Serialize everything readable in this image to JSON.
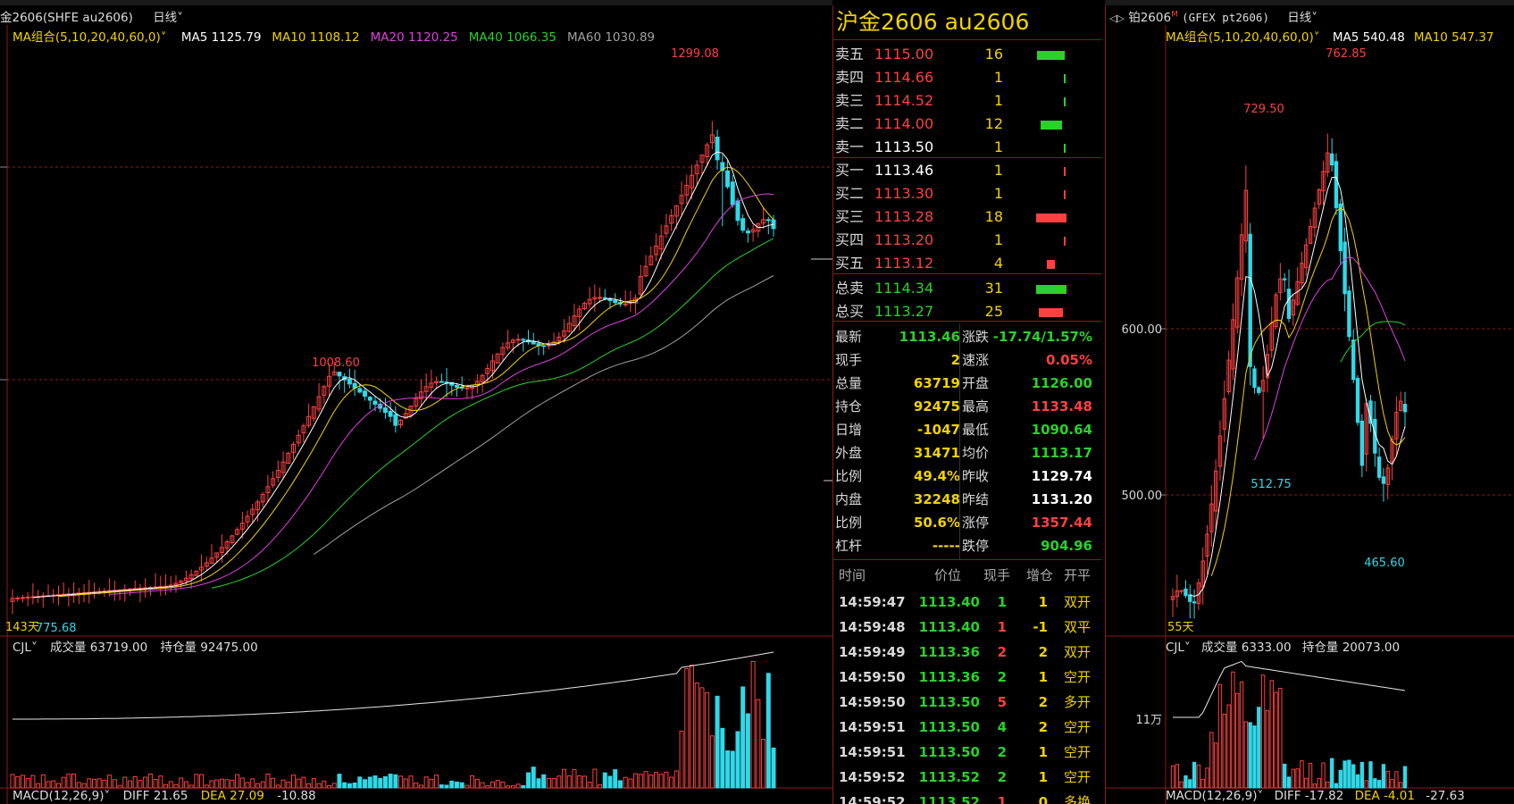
{
  "left_panel": {
    "title": "金2606(SHFE au2606)",
    "period": "日线",
    "ma_label": "MA组合(5,10,20,40,60,0)",
    "ma": [
      {
        "label": "MA5 1125.79",
        "color": "#ffffff"
      },
      {
        "label": "MA10 1108.12",
        "color": "#f2d200"
      },
      {
        "label": "MA20 1120.25",
        "color": "#e040e0"
      },
      {
        "label": "MA40 1066.35",
        "color": "#2ad12a"
      },
      {
        "label": "MA60 1030.89",
        "color": "#a0a0a0"
      }
    ],
    "high_label": "1299.08",
    "mid_high_label": "1008.60",
    "low_label": "775.68",
    "days_label": "143天",
    "vol_label": "CJL",
    "vol_value": "成交量 63719.00",
    "oi_value": "持仓量 92475.00",
    "macd_label": "MACD(12,26,9)",
    "diff": "DIFF 21.65",
    "dea": "DEA 27.09",
    "macd_val": "-10.88"
  },
  "quote": {
    "title": "沪金2606  au2606",
    "asks": [
      {
        "label": "卖五",
        "price": "1115.00",
        "vol": "16",
        "bar": 0.9,
        "pcolor": "#ff4040"
      },
      {
        "label": "卖四",
        "price": "1114.66",
        "vol": "1",
        "bar": 0.05,
        "pcolor": "#ff4040"
      },
      {
        "label": "卖三",
        "price": "1114.52",
        "vol": "1",
        "bar": 0.05,
        "pcolor": "#ff4040"
      },
      {
        "label": "卖二",
        "price": "1114.00",
        "vol": "12",
        "bar": 0.7,
        "pcolor": "#ff4040"
      },
      {
        "label": "卖一",
        "price": "1113.50",
        "vol": "1",
        "bar": 0.05,
        "pcolor": "#ffffff"
      }
    ],
    "bids": [
      {
        "label": "买一",
        "price": "1113.46",
        "vol": "1",
        "bar": 0.05,
        "pcolor": "#ffffff"
      },
      {
        "label": "买二",
        "price": "1113.30",
        "vol": "1",
        "bar": 0.05,
        "pcolor": "#ff4040"
      },
      {
        "label": "买三",
        "price": "1113.28",
        "vol": "18",
        "bar": 1.0,
        "pcolor": "#ff4040"
      },
      {
        "label": "买四",
        "price": "1113.20",
        "vol": "1",
        "bar": 0.05,
        "pcolor": "#ff4040"
      },
      {
        "label": "买五",
        "price": "1113.12",
        "vol": "4",
        "bar": 0.25,
        "pcolor": "#ff4040"
      }
    ],
    "totals": [
      {
        "label": "总卖",
        "price": "1114.34",
        "vol": "31",
        "bar": 1.0,
        "bcolor": "#2ad12a"
      },
      {
        "label": "总买",
        "price": "1113.27",
        "vol": "25",
        "bar": 0.8,
        "bcolor": "#ff4040"
      }
    ],
    "stats_left": [
      {
        "k": "最新",
        "v": "1113.46",
        "c": "#2ad12a"
      },
      {
        "k": "现手",
        "v": "2",
        "c": "#f2d200"
      },
      {
        "k": "总量",
        "v": "63719",
        "c": "#f2d200"
      },
      {
        "k": "持仓",
        "v": "92475",
        "c": "#f2d200"
      },
      {
        "k": "日增",
        "v": "-1047",
        "c": "#f2d200"
      },
      {
        "k": "外盘",
        "v": "31471",
        "c": "#f2d200"
      },
      {
        "k": "比例",
        "v": "49.4%",
        "c": "#f2d200"
      },
      {
        "k": "内盘",
        "v": "32248",
        "c": "#f2d200"
      },
      {
        "k": "比例",
        "v": "50.6%",
        "c": "#f2d200"
      },
      {
        "k": "杠杆",
        "v": "-----",
        "c": "#f2d200"
      }
    ],
    "stats_right": [
      {
        "k": "涨跌",
        "v": "-17.74/1.57%",
        "c": "#2ad12a"
      },
      {
        "k": "速涨",
        "v": "0.05%",
        "c": "#ff4040"
      },
      {
        "k": "开盘",
        "v": "1126.00",
        "c": "#2ad12a"
      },
      {
        "k": "最高",
        "v": "1133.48",
        "c": "#ff4040"
      },
      {
        "k": "最低",
        "v": "1090.64",
        "c": "#2ad12a"
      },
      {
        "k": "均价",
        "v": "1113.17",
        "c": "#2ad12a"
      },
      {
        "k": "昨收",
        "v": "1129.74",
        "c": "#ffffff"
      },
      {
        "k": "昨结",
        "v": "1131.20",
        "c": "#ffffff"
      },
      {
        "k": "涨停",
        "v": "1357.44",
        "c": "#ff4040"
      },
      {
        "k": "跌停",
        "v": "904.96",
        "c": "#2ad12a"
      }
    ],
    "tick_headers": [
      "时间",
      "价位",
      "现手",
      "增仓",
      "开平"
    ],
    "ticks": [
      {
        "t": "14:59:47",
        "p": "1113.40",
        "n": "1",
        "nc": "#2ad12a",
        "d": "1",
        "a": "双开"
      },
      {
        "t": "14:59:48",
        "p": "1113.40",
        "n": "1",
        "nc": "#ff4040",
        "d": "-1",
        "a": "双平"
      },
      {
        "t": "14:59:49",
        "p": "1113.36",
        "n": "2",
        "nc": "#ff4040",
        "d": "2",
        "a": "双开"
      },
      {
        "t": "14:59:50",
        "p": "1113.36",
        "n": "2",
        "nc": "#2ad12a",
        "d": "1",
        "a": "空开"
      },
      {
        "t": "14:59:50",
        "p": "1113.50",
        "n": "5",
        "nc": "#ff4040",
        "d": "2",
        "a": "多开"
      },
      {
        "t": "14:59:51",
        "p": "1113.50",
        "n": "4",
        "nc": "#2ad12a",
        "d": "2",
        "a": "空开"
      },
      {
        "t": "14:59:51",
        "p": "1113.50",
        "n": "2",
        "nc": "#2ad12a",
        "d": "1",
        "a": "空开"
      },
      {
        "t": "14:59:52",
        "p": "1113.52",
        "n": "2",
        "nc": "#2ad12a",
        "d": "1",
        "a": "空开"
      },
      {
        "t": "14:59:52",
        "p": "1113.52",
        "n": "1",
        "nc": "#ff4040",
        "d": "0",
        "a": "多换"
      }
    ]
  },
  "right_panel": {
    "icon": "◁▷",
    "title": "铂2606",
    "superscript": "M",
    "code": "(GFEX pt2606)",
    "period": "日线",
    "ma_label": "MA组合(5,10,20,40,60,0)",
    "ma": [
      {
        "label": "MA5 540.48",
        "color": "#ffffff"
      },
      {
        "label": "MA10 547.37",
        "color": "#f2d200"
      }
    ],
    "y_labels": [
      "600.00",
      "500.00"
    ],
    "high_label": "762.85",
    "peak1_label": "729.50",
    "low1_label": "512.75",
    "low2_label": "465.60",
    "days_label": "55天",
    "vol_label": "CJL",
    "vol_value": "成交量 6333.00",
    "oi_value": "持仓量 20073.00",
    "vol_axis": "11万",
    "macd_label": "MACD(12,26,9)",
    "diff": "DIFF -17.82",
    "dea": "DEA -4.01",
    "macd_val": "-27.63"
  },
  "colors": {
    "up": "#ff4040",
    "down": "#30d8e8",
    "grid": "#8b1a1a",
    "ma5": "#ffffff",
    "ma10": "#f2d200",
    "ma20": "#e040e0",
    "ma40": "#2ad12a",
    "ma60": "#a0a0a0"
  }
}
